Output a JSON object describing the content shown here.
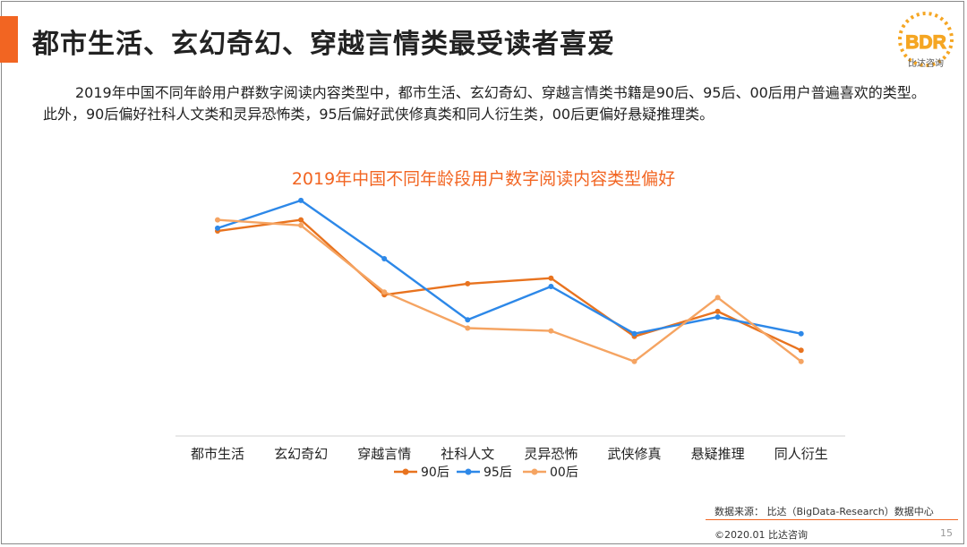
{
  "slide": {
    "title": "都市生活、玄幻奇幻、穿越言情类最受读者喜爱",
    "intro": "2019年中国不同年龄用户群数字阅读内容类型中，都市生活、玄幻奇幻、穿越言情类书籍是90后、95后、00后用户普遍喜欢的类型。此外，90后偏好社科人文类和灵异恐怖类，95后偏好武侠修真类和同人衍生类，00后更偏好悬疑推理类。",
    "source": "数据来源：  比达（BigData-Research）数据中心",
    "copyright": "©2020.01  比达咨询",
    "page_number": "15",
    "accent_color": "#f26522"
  },
  "logo": {
    "text": "BDR",
    "subtitle": "比达咨询",
    "color": "#f5a623"
  },
  "chart_data": {
    "type": "line",
    "title": "2019年中国不同年龄段用户数字阅读内容类型偏好",
    "title_color": "#f26522",
    "categories": [
      "都市生活",
      "玄幻奇幻",
      "穿越言情",
      "社科人文",
      "灵异恐怖",
      "武侠修真",
      "悬疑推理",
      "同人衍生"
    ],
    "ylim": [
      0,
      100
    ],
    "grid": false,
    "legend_position": "bottom",
    "series": [
      {
        "name": "90后",
        "color": "#e8731f",
        "values": [
          70,
          74,
          47,
          51,
          53,
          32,
          41,
          27
        ]
      },
      {
        "name": "95后",
        "color": "#2d88e8",
        "values": [
          71,
          81,
          60,
          38,
          50,
          33,
          39,
          33
        ]
      },
      {
        "name": "00后",
        "color": "#f5a462",
        "values": [
          74,
          72,
          48,
          35,
          34,
          23,
          46,
          23
        ]
      }
    ]
  }
}
